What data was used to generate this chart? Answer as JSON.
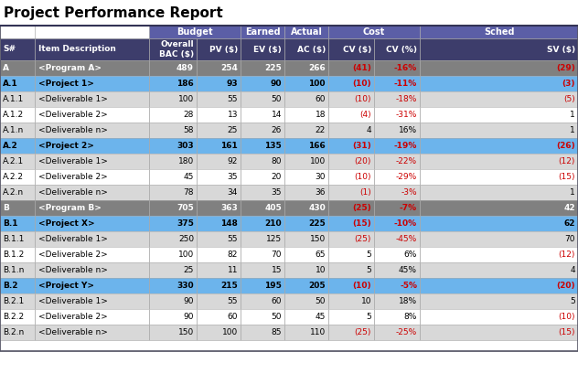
{
  "title": "Project Performance Report",
  "col_labels_h1": [
    "",
    "",
    "Budget",
    "Earned",
    "Actual",
    "Cost",
    "Sched"
  ],
  "col_labels_h2": [
    "S#",
    "Item Description",
    "Overall\nBAC ($)",
    "PV ($)",
    "EV ($)",
    "AC ($)",
    "CV ($)",
    "CV (%)",
    "SV ($)"
  ],
  "rows": [
    {
      "s": "A",
      "desc": "<Program A>",
      "bac": "489",
      "pv": "254",
      "ev": "225",
      "ac": "266",
      "cv": "(41)",
      "cvp": "-16%",
      "sv": "(29)",
      "type": "program"
    },
    {
      "s": "A.1",
      "desc": "<Project 1>",
      "bac": "186",
      "pv": "93",
      "ev": "90",
      "ac": "100",
      "cv": "(10)",
      "cvp": "-11%",
      "sv": "(3)",
      "type": "project"
    },
    {
      "s": "A.1.1",
      "desc": "<Deliverable 1>",
      "bac": "100",
      "pv": "55",
      "ev": "50",
      "ac": "60",
      "cv": "(10)",
      "cvp": "-18%",
      "sv": "(5)",
      "type": "deliverable"
    },
    {
      "s": "A.1.2",
      "desc": "<Deliverable 2>",
      "bac": "28",
      "pv": "13",
      "ev": "14",
      "ac": "18",
      "cv": "(4)",
      "cvp": "-31%",
      "sv": "1",
      "type": "deliverable"
    },
    {
      "s": "A.1.n",
      "desc": "<Deliverable n>",
      "bac": "58",
      "pv": "25",
      "ev": "26",
      "ac": "22",
      "cv": "4",
      "cvp": "16%",
      "sv": "1",
      "type": "deliverable"
    },
    {
      "s": "A.2",
      "desc": "<Project 2>",
      "bac": "303",
      "pv": "161",
      "ev": "135",
      "ac": "166",
      "cv": "(31)",
      "cvp": "-19%",
      "sv": "(26)",
      "type": "project"
    },
    {
      "s": "A.2.1",
      "desc": "<Deliverable 1>",
      "bac": "180",
      "pv": "92",
      "ev": "80",
      "ac": "100",
      "cv": "(20)",
      "cvp": "-22%",
      "sv": "(12)",
      "type": "deliverable"
    },
    {
      "s": "A.2.2",
      "desc": "<Deliverable 2>",
      "bac": "45",
      "pv": "35",
      "ev": "20",
      "ac": "30",
      "cv": "(10)",
      "cvp": "-29%",
      "sv": "(15)",
      "type": "deliverable"
    },
    {
      "s": "A.2.n",
      "desc": "<Deliverable n>",
      "bac": "78",
      "pv": "34",
      "ev": "35",
      "ac": "36",
      "cv": "(1)",
      "cvp": "-3%",
      "sv": "1",
      "type": "deliverable"
    },
    {
      "s": "B",
      "desc": "<Program B>",
      "bac": "705",
      "pv": "363",
      "ev": "405",
      "ac": "430",
      "cv": "(25)",
      "cvp": "-7%",
      "sv": "42",
      "type": "program"
    },
    {
      "s": "B.1",
      "desc": "<Project X>",
      "bac": "375",
      "pv": "148",
      "ev": "210",
      "ac": "225",
      "cv": "(15)",
      "cvp": "-10%",
      "sv": "62",
      "type": "project"
    },
    {
      "s": "B.1.1",
      "desc": "<Deliverable 1>",
      "bac": "250",
      "pv": "55",
      "ev": "125",
      "ac": "150",
      "cv": "(25)",
      "cvp": "-45%",
      "sv": "70",
      "type": "deliverable"
    },
    {
      "s": "B.1.2",
      "desc": "<Deliverable 2>",
      "bac": "100",
      "pv": "82",
      "ev": "70",
      "ac": "65",
      "cv": "5",
      "cvp": "6%",
      "sv": "(12)",
      "type": "deliverable"
    },
    {
      "s": "B.1.n",
      "desc": "<Deliverable n>",
      "bac": "25",
      "pv": "11",
      "ev": "15",
      "ac": "10",
      "cv": "5",
      "cvp": "45%",
      "sv": "4",
      "type": "deliverable"
    },
    {
      "s": "B.2",
      "desc": "<Project Y>",
      "bac": "330",
      "pv": "215",
      "ev": "195",
      "ac": "205",
      "cv": "(10)",
      "cvp": "-5%",
      "sv": "(20)",
      "type": "project"
    },
    {
      "s": "B.2.1",
      "desc": "<Deliverable 1>",
      "bac": "90",
      "pv": "55",
      "ev": "60",
      "ac": "50",
      "cv": "10",
      "cvp": "18%",
      "sv": "5",
      "type": "deliverable"
    },
    {
      "s": "B.2.2",
      "desc": "<Deliverable 2>",
      "bac": "90",
      "pv": "60",
      "ev": "50",
      "ac": "45",
      "cv": "5",
      "cvp": "8%",
      "sv": "(10)",
      "type": "deliverable"
    },
    {
      "s": "B.2.n",
      "desc": "<Deliverable n>",
      "bac": "150",
      "pv": "100",
      "ev": "85",
      "ac": "110",
      "cv": "(25)",
      "cvp": "-25%",
      "sv": "(15)",
      "type": "deliverable"
    }
  ],
  "colors": {
    "header_group_bg": "#5b5ea6",
    "header_group_text": "#ffffff",
    "header_col_bg": "#3d3d6b",
    "header_col_text": "#ffffff",
    "program_bg": "#808080",
    "program_text": "#ffffff",
    "project_bg": "#6cb4ec",
    "project_text": "#000000",
    "del_bg_a": "#d8d8d8",
    "del_bg_b": "#ffffff",
    "del_text": "#000000",
    "neg_text": "#cc0000",
    "pos_text": "#000000",
    "border": "#aaaaaa",
    "dark_border": "#555566"
  },
  "figw": 6.32,
  "figh": 4.2,
  "dpi": 100
}
